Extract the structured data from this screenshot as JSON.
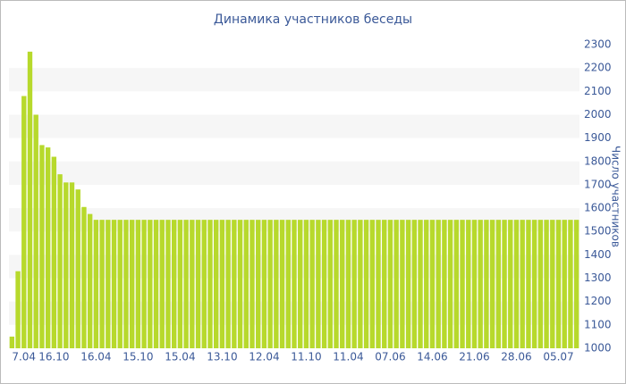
{
  "chart_data": {
    "type": "bar",
    "title": "Динамика участников беседы",
    "y_label": "Число участников",
    "categories": [
      "7.04",
      null,
      null,
      null,
      null,
      null,
      null,
      "16.10",
      null,
      null,
      null,
      null,
      null,
      null,
      "16.04",
      null,
      null,
      null,
      null,
      null,
      null,
      "15.10",
      null,
      null,
      null,
      null,
      null,
      null,
      "15.04",
      null,
      null,
      null,
      null,
      null,
      null,
      "13.10",
      null,
      null,
      null,
      null,
      null,
      null,
      "12.04",
      null,
      null,
      null,
      null,
      null,
      null,
      "11.10",
      null,
      null,
      null,
      null,
      null,
      null,
      "11.04",
      null,
      null,
      null,
      null,
      null,
      null,
      "07.06",
      null,
      null,
      null,
      null,
      null,
      null,
      "14.06",
      null,
      null,
      null,
      null,
      null,
      null,
      "21.06",
      null,
      null,
      null,
      null,
      null,
      null,
      "28.06",
      null,
      null,
      null,
      null,
      null,
      null,
      "05.07",
      null,
      null,
      null
    ],
    "values": [
      1050,
      1330,
      2080,
      2270,
      2000,
      1870,
      1860,
      1820,
      1745,
      1710,
      1710,
      1680,
      1605,
      1575,
      1550,
      1550,
      1550,
      1550,
      1550,
      1550,
      1550,
      1550,
      1550,
      1550,
      1550,
      1550,
      1550,
      1550,
      1550,
      1550,
      1550,
      1550,
      1550,
      1550,
      1550,
      1550,
      1550,
      1550,
      1550,
      1550,
      1550,
      1550,
      1550,
      1550,
      1550,
      1550,
      1550,
      1550,
      1550,
      1550,
      1550,
      1550,
      1550,
      1550,
      1550,
      1550,
      1550,
      1550,
      1550,
      1550,
      1550,
      1550,
      1550,
      1550,
      1550,
      1550,
      1550,
      1550,
      1550,
      1550,
      1550,
      1550,
      1550,
      1550,
      1550,
      1550,
      1550,
      1550,
      1550,
      1550,
      1550,
      1550,
      1550,
      1550,
      1550,
      1550,
      1550,
      1550,
      1550,
      1550,
      1550,
      1550,
      1550,
      1550,
      1550
    ],
    "color": "#b7d92c",
    "ylim": [
      1000,
      2300
    ],
    "yticks": [
      1000,
      1100,
      1200,
      1300,
      1400,
      1500,
      1600,
      1700,
      1800,
      1900,
      2000,
      2100,
      2200,
      2300
    ],
    "grid": "bands",
    "band_color": "#f6f6f6"
  }
}
